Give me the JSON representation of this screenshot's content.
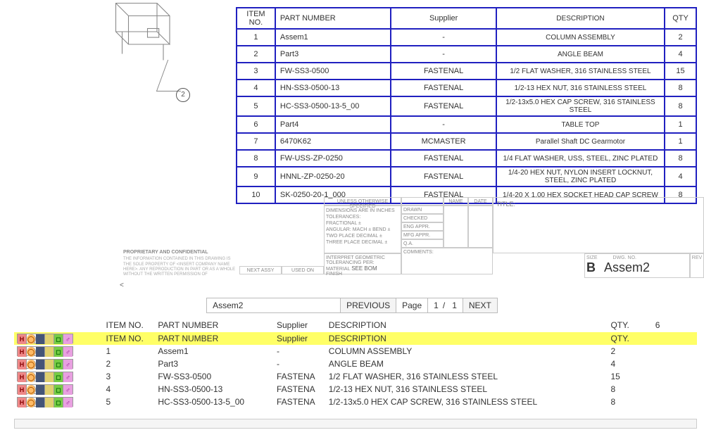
{
  "drawing": {
    "callout_number": "2"
  },
  "bom": {
    "headers": {
      "item": "ITEM NO.",
      "part": "PART NUMBER",
      "supplier": "Supplier",
      "desc": "DESCRIPTION",
      "qty": "QTY"
    },
    "border_color": "#2020c0",
    "rows": [
      {
        "item": "1",
        "part": "Assem1",
        "supplier": "-",
        "desc": "COLUMN ASSEMBLY",
        "qty": "2"
      },
      {
        "item": "2",
        "part": "Part3",
        "supplier": "-",
        "desc": "ANGLE BEAM",
        "qty": "4"
      },
      {
        "item": "3",
        "part": "FW-SS3-0500",
        "supplier": "FASTENAL",
        "desc": "1/2 FLAT WASHER, 316 STAINLESS STEEL",
        "qty": "15"
      },
      {
        "item": "4",
        "part": "HN-SS3-0500-13",
        "supplier": "FASTENAL",
        "desc": "1/2-13 HEX NUT, 316 STAINLESS STEEL",
        "qty": "8"
      },
      {
        "item": "5",
        "part": "HC-SS3-0500-13-5_00",
        "supplier": "FASTENAL",
        "desc": "1/2-13x5.0 HEX CAP SCREW, 316 STAINLESS STEEL",
        "qty": "8"
      },
      {
        "item": "6",
        "part": "Part4",
        "supplier": "-",
        "desc": "TABLE TOP",
        "qty": "1"
      },
      {
        "item": "7",
        "part": "6470K62",
        "supplier": "MCMASTER",
        "desc": "Parallel Shaft DC Gearmotor",
        "qty": "1"
      },
      {
        "item": "8",
        "part": "FW-USS-ZP-0250",
        "supplier": "FASTENAL",
        "desc": "1/4 FLAT WASHER, USS, STEEL, ZINC PLATED",
        "qty": "8"
      },
      {
        "item": "9",
        "part": "HNNL-ZP-0250-20",
        "supplier": "FASTENAL",
        "desc": "1/4-20 HEX NUT, NYLON INSERT LOCKNUT, STEEL, ZINC PLATED",
        "qty": "4"
      },
      {
        "item": "10",
        "part": "SK-0250-20-1_000",
        "supplier": "FASTENAL",
        "desc": "1/4-20 X 1.00 HEX SOCKET HEAD CAP SCREW",
        "qty": "8"
      }
    ]
  },
  "titleblock": {
    "unless": "UNLESS OTHERWISE SPECIFIED",
    "dims": "DIMENSIONS ARE IN INCHES",
    "tol": "TOLERANCES:",
    "frac": "FRACTIONAL ±",
    "ang": "ANGULAR: MACH ±   BEND ±",
    "two": "TWO PLACE DECIMAL   ±",
    "three": "THREE PLACE DECIMAL  ±",
    "interp": "INTERPRET GEOMETRIC TOLERANCING PER:",
    "material_lbl": "MATERIAL",
    "material": "SEE BOM",
    "finish_lbl": "FINISH",
    "name_hdr": "NAME",
    "date_hdr": "DATE",
    "drawn": "DRAWN",
    "checked": "CHECKED",
    "engappr": "ENG APPR.",
    "mfgappr": "MFG APPR.",
    "qa": "Q.A.",
    "comments": "COMMENTS:",
    "title_lbl": "TITLE:",
    "size_lbl": "SIZE",
    "size": "B",
    "dwg_lbl": "DWG. NO.",
    "dwg_no": "Assem2",
    "rev_lbl": "REV",
    "next_assy_lbl": "NEXT ASSY",
    "used_on_lbl": "USED ON"
  },
  "proprietary": {
    "head": "PROPRIETARY AND CONFIDENTIAL",
    "body": "THE INFORMATION CONTAINED IN THIS DRAWING IS THE SOLE PROPERTY OF <INSERT COMPANY NAME HERE>. ANY REPRODUCTION IN PART OR AS A WHOLE WITHOUT THE WRITTEN PERMISSION OF"
  },
  "nav": {
    "title": "Assem2",
    "prev": "PREVIOUS",
    "page_lbl": "Page",
    "page_cur": "1",
    "page_sep": "/",
    "page_tot": "1",
    "next": "NEXT"
  },
  "list": {
    "headers": {
      "item": "ITEM NO.",
      "part": "PART NUMBER",
      "supplier": "Supplier",
      "desc": "DESCRIPTION",
      "qty": "QTY.",
      "extra": "6"
    },
    "highlight_row": {
      "item": "ITEM NO.",
      "part": "PART NUMBER",
      "supplier": "Supplier",
      "desc": "DESCRIPTION",
      "qty": "QTY."
    },
    "rows": [
      {
        "item": "1",
        "part": "Assem1",
        "supplier": "-",
        "desc": "COLUMN ASSEMBLY",
        "qty": "2"
      },
      {
        "item": "2",
        "part": "Part3",
        "supplier": "-",
        "desc": "ANGLE BEAM",
        "qty": "4"
      },
      {
        "item": "3",
        "part": "FW-SS3-0500",
        "supplier": "FASTENA",
        "desc": "1/2 FLAT WASHER, 316 STAINLESS STEEL",
        "qty": "15"
      },
      {
        "item": "4",
        "part": "HN-SS3-0500-13",
        "supplier": "FASTENA",
        "desc": "1/2-13 HEX NUT, 316 STAINLESS STEEL",
        "qty": "8"
      },
      {
        "item": "5",
        "part": "HC-SS3-0500-13-5_00",
        "supplier": "FASTENA",
        "desc": "1/2-13x5.0 HEX CAP SCREW, 316 STAINLESS STEEL",
        "qty": "8"
      }
    ],
    "highlight_color": "#ffff66",
    "icon_palette": {
      "h": "#e88",
      "o": "#fb6",
      "b1": "#457",
      "b2": "#e0d070",
      "g": "#7c4",
      "m": "#e8a0e0"
    }
  }
}
